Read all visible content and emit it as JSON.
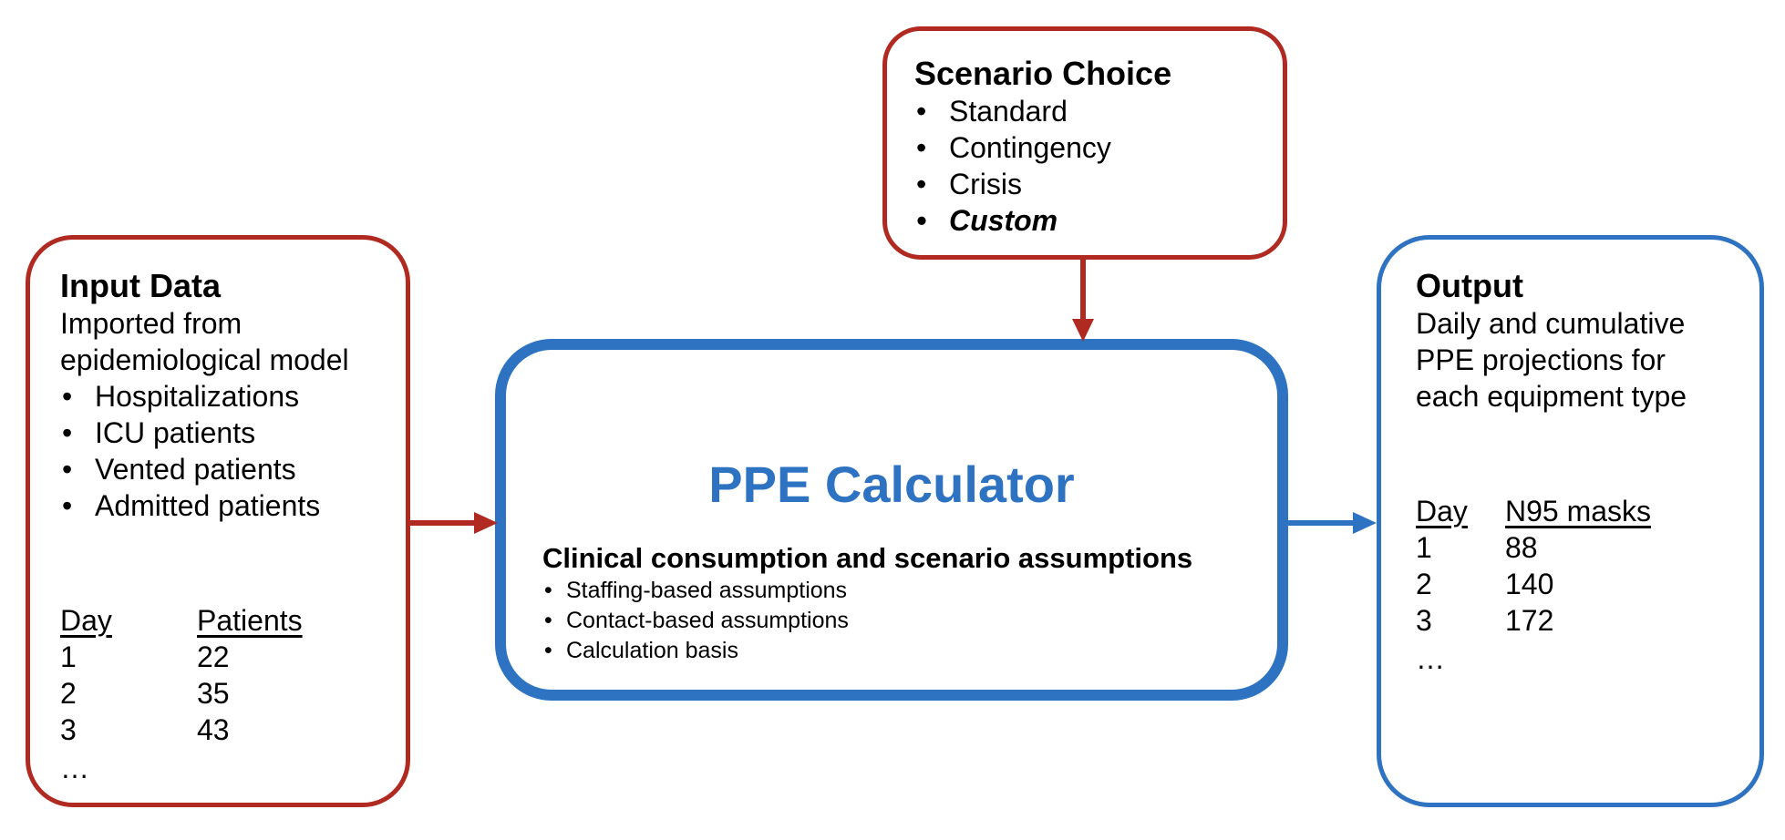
{
  "input_box": {
    "title": "Input Data",
    "description": "Imported from epidemiological model",
    "items": [
      "Hospitalizations",
      "ICU patients",
      "Vented patients",
      "Admitted patients"
    ],
    "table": {
      "headers": [
        "Day",
        "Patients"
      ],
      "rows": [
        [
          "1",
          "22"
        ],
        [
          "2",
          "35"
        ],
        [
          "3",
          "43"
        ]
      ],
      "ellipsis": "…"
    }
  },
  "scenario_box": {
    "title": "Scenario Choice",
    "items": [
      "Standard",
      "Contingency",
      "Crisis"
    ],
    "custom_item": "Custom"
  },
  "calculator_box": {
    "title": "PPE Calculator",
    "subtitle": "Clinical consumption and scenario assumptions",
    "items": [
      "Staffing-based assumptions",
      "Contact-based assumptions",
      "Calculation basis"
    ]
  },
  "output_box": {
    "title": "Output",
    "description": "Daily and cumulative PPE projections for each equipment type",
    "table": {
      "headers": [
        "Day",
        "N95 masks"
      ],
      "rows": [
        [
          "1",
          "88"
        ],
        [
          "2",
          "140"
        ],
        [
          "3",
          "172"
        ]
      ],
      "ellipsis": "…"
    }
  },
  "colors": {
    "red": "#b02a22",
    "blue": "#2e72c2"
  }
}
